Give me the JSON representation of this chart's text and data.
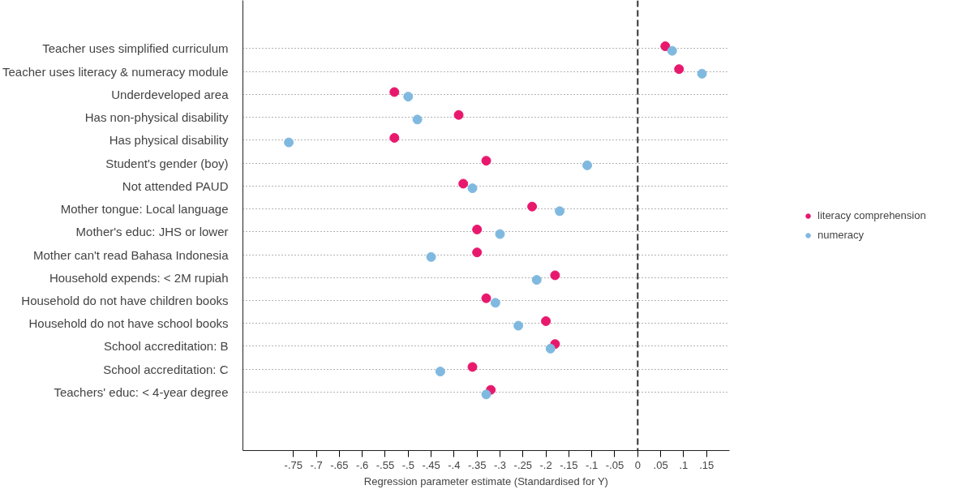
{
  "chart_data": {
    "type": "scatter",
    "xlabel": "Regression parameter estimate (Standardised for Y)",
    "categories": [
      "Teacher uses simplified curriculum",
      "Teacher uses literacy & numeracy module",
      "Underdeveloped area",
      "Has non-physical disability",
      "Has physical disability",
      "Student's gender (boy)",
      "Not attended PAUD",
      "Mother tongue: Local language",
      "Mother's educ: JHS or lower",
      "Mother can't read Bahasa Indonesia",
      "Household expends: < 2M rupiah",
      "Household do not have children books",
      "Household do not have school books",
      "School accreditation: B",
      "School accreditation: C",
      "Teachers' educ: < 4-year degree"
    ],
    "series": [
      {
        "name": "literacy comprehension",
        "color": "#e8186d",
        "values": [
          0.06,
          0.09,
          -0.53,
          -0.39,
          -0.53,
          -0.33,
          -0.38,
          -0.23,
          -0.35,
          -0.35,
          -0.18,
          -0.33,
          -0.2,
          -0.18,
          -0.36,
          -0.32
        ]
      },
      {
        "name": "numeracy",
        "color": "#80b9e0",
        "values": [
          0.075,
          0.14,
          -0.5,
          -0.48,
          -0.76,
          -0.11,
          -0.36,
          -0.17,
          -0.3,
          -0.45,
          -0.22,
          -0.31,
          -0.26,
          -0.19,
          -0.43,
          -0.33
        ]
      }
    ],
    "orientation": "horizontal",
    "xlim": [
      -0.86,
      0.2
    ],
    "xticks": [
      {
        "value": -0.75,
        "label": "-.75"
      },
      {
        "value": -0.7,
        "label": "-.7"
      },
      {
        "value": -0.65,
        "label": "-.65"
      },
      {
        "value": -0.6,
        "label": "-.6"
      },
      {
        "value": -0.55,
        "label": "-.55"
      },
      {
        "value": -0.5,
        "label": "-.5"
      },
      {
        "value": -0.45,
        "label": "-.45"
      },
      {
        "value": -0.4,
        "label": "-.4"
      },
      {
        "value": -0.35,
        "label": "-.35"
      },
      {
        "value": -0.3,
        "label": "-.3"
      },
      {
        "value": -0.25,
        "label": "-.25"
      },
      {
        "value": -0.2,
        "label": "-.2"
      },
      {
        "value": -0.15,
        "label": "-.15"
      },
      {
        "value": -0.1,
        "label": "-.1"
      },
      {
        "value": -0.05,
        "label": "-.05"
      },
      0,
      {
        "value": 0.05,
        "label": ".05"
      },
      {
        "value": 0.1,
        "label": ".1"
      },
      {
        "value": 0.15,
        "label": ".15"
      }
    ],
    "ref_lines": [
      {
        "axis": "x",
        "value": 0,
        "color": "#333333",
        "line_style": "dashed"
      }
    ],
    "grid": "y",
    "legend": "right",
    "marker": "circle"
  }
}
